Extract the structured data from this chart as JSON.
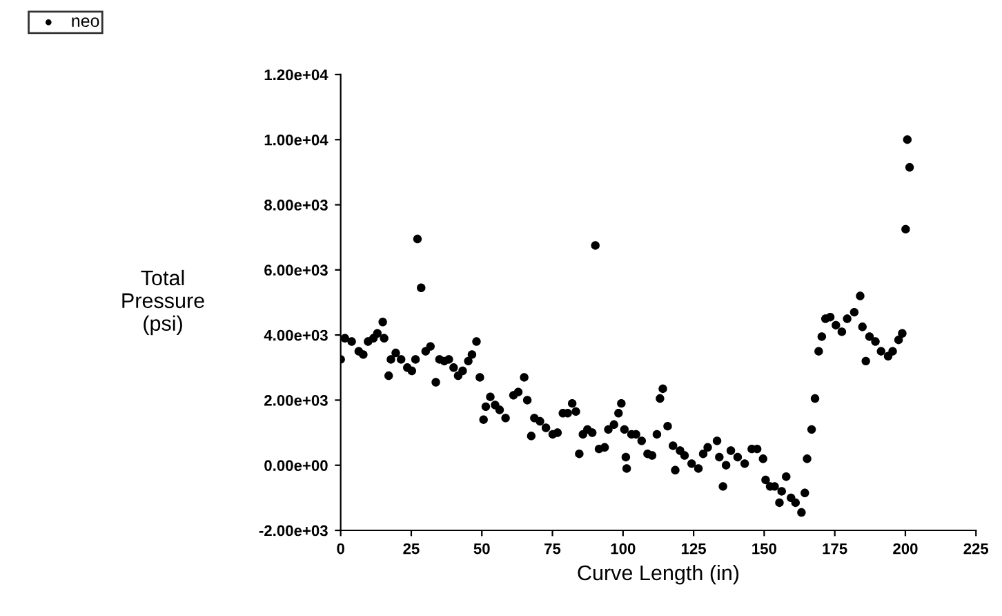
{
  "chart_data": {
    "type": "scatter",
    "xlabel": "Curve Length (in)",
    "ylabel": "Total\nPressure\n(psi)",
    "xlim": [
      0,
      225
    ],
    "xticks": [
      0,
      25,
      50,
      75,
      100,
      125,
      150,
      175,
      200,
      225
    ],
    "ylim": [
      -2000,
      12000
    ],
    "yticks": [
      {
        "value": -2000,
        "label": "-2.00e+03"
      },
      {
        "value": 0,
        "label": "0.00e+00"
      },
      {
        "value": 2000,
        "label": "2.00e+03"
      },
      {
        "value": 4000,
        "label": "4.00e+03"
      },
      {
        "value": 6000,
        "label": "6.00e+03"
      },
      {
        "value": 8000,
        "label": "8.00e+03"
      },
      {
        "value": 10000,
        "label": "1.00e+04"
      },
      {
        "value": 12000,
        "label": "1.20e+04"
      }
    ],
    "legend": "top left",
    "marker": "circle",
    "grid": false,
    "series": [
      {
        "name": "neo",
        "color": "#000000",
        "x": [
          0,
          1.5,
          3.9,
          6.4,
          8,
          9.7,
          11.6,
          13,
          14.9,
          15.4,
          17,
          17.8,
          19.5,
          21.4,
          23.6,
          25.2,
          26.5,
          27.2,
          28.5,
          30.1,
          31.8,
          33.7,
          35,
          36.7,
          38.3,
          40,
          41.6,
          43.2,
          45.2,
          46.5,
          48.1,
          49.3,
          50.6,
          51.4,
          53,
          54.7,
          56.3,
          58.4,
          61.2,
          62.9,
          65,
          66.1,
          67.5,
          68.6,
          70.6,
          72.7,
          75.1,
          76.8,
          78.7,
          80.4,
          82,
          83.3,
          84.5,
          85.8,
          87.4,
          89.1,
          90.2,
          91.5,
          93.5,
          94.8,
          96.8,
          98.4,
          99.4,
          100.5,
          101,
          101.3,
          103,
          104.6,
          106.6,
          108.7,
          110.3,
          112,
          113.1,
          114.1,
          115.8,
          117.7,
          118.5,
          120.2,
          121.8,
          124.3,
          126.7,
          128.4,
          130,
          133.3,
          134.1,
          135.4,
          136.5,
          138.2,
          140.6,
          143.1,
          145.6,
          147.5,
          149.6,
          150.5,
          152.1,
          153.7,
          155.4,
          156.2,
          157.8,
          159.5,
          161.1,
          163.2,
          164.4,
          165.2,
          166.8,
          168,
          169.3,
          170.4,
          171.7,
          173.4,
          175.4,
          177.5,
          179.4,
          181.9,
          184,
          184.8,
          186,
          187.3,
          189.4,
          191.4,
          193.9,
          195.5,
          197.6,
          198.9,
          200.1,
          200.7,
          201.5
        ],
        "values": [
          3250,
          3900,
          3800,
          3500,
          3400,
          3800,
          3900,
          4050,
          4400,
          3900,
          2750,
          3250,
          3450,
          3250,
          3000,
          2900,
          3250,
          6950,
          5450,
          3500,
          3650,
          2550,
          3250,
          3200,
          3250,
          3000,
          2750,
          2900,
          3200,
          3400,
          3800,
          2700,
          1400,
          1800,
          2100,
          1850,
          1700,
          1450,
          2150,
          2250,
          2700,
          2000,
          900,
          1450,
          1350,
          1150,
          950,
          1000,
          1600,
          1600,
          1900,
          1650,
          350,
          950,
          1100,
          1000,
          6750,
          500,
          550,
          1100,
          1250,
          1600,
          1900,
          1100,
          250,
          -100,
          950,
          950,
          750,
          350,
          300,
          950,
          2050,
          2350,
          1200,
          600,
          -150,
          450,
          300,
          50,
          -100,
          350,
          550,
          750,
          250,
          -650,
          0,
          450,
          250,
          50,
          500,
          500,
          200,
          -450,
          -650,
          -650,
          -1150,
          -800,
          -350,
          -1000,
          -1150,
          -1450,
          -850,
          200,
          1100,
          2050,
          3500,
          3950,
          4500,
          4550,
          4300,
          4100,
          4500,
          4700,
          5200,
          4250,
          3200,
          3950,
          3800,
          3500,
          3350,
          3500,
          3850,
          4050,
          7250,
          10000,
          9150
        ]
      }
    ]
  }
}
